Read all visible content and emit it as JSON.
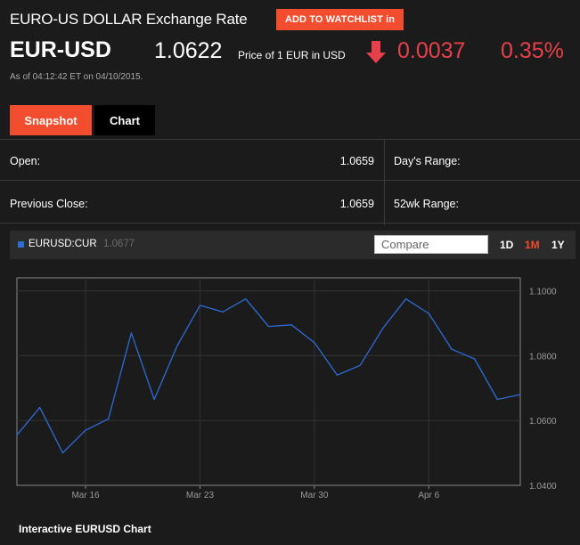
{
  "header": {
    "title": "EURO-US DOLLAR Exchange Rate",
    "watchlist_label": "ADD TO WATCHLIST in"
  },
  "quote": {
    "ticker": "EUR-USD",
    "price": "1.0622",
    "price_desc": "Price of 1 EUR in USD",
    "direction_icon": "down-arrow-icon",
    "change": "0.0037",
    "change_pct": "0.35%",
    "as_of": "As of 04:12:42 ET on 04/10/2015."
  },
  "tabs": [
    {
      "label": "Snapshot",
      "active": true
    },
    {
      "label": "Chart",
      "active": false
    }
  ],
  "stats": {
    "open_label": "Open:",
    "open_value": "1.0659",
    "days_range_label": "Day's Range:",
    "prev_close_label": "Previous Close:",
    "prev_close_value": "1.0659",
    "wk52_range_label": "52wk Range:"
  },
  "chart_toolbar": {
    "series_name": "EURUSD:CUR",
    "series_value": "1.0677",
    "compare_placeholder": "Compare",
    "ranges": [
      "1D",
      "1M",
      "1Y"
    ],
    "active_range": "1M"
  },
  "colors": {
    "accent": "#f24d2e",
    "negative": "#e8404a",
    "series": "#2d6bd6"
  },
  "chart_data": {
    "type": "line",
    "title": "",
    "xlabel": "",
    "ylabel": "",
    "x_tick_labels": [
      "Mar 16",
      "Mar 23",
      "Mar 30",
      "Apr 6"
    ],
    "y_tick_labels": [
      "1.0400",
      "1.0600",
      "1.0800",
      "1.1000"
    ],
    "ylim": [
      1.04,
      1.104
    ],
    "x": [
      "Mar 11",
      "Mar 12",
      "Mar 13",
      "Mar 16",
      "Mar 17",
      "Mar 18",
      "Mar 19",
      "Mar 20",
      "Mar 23",
      "Mar 24",
      "Mar 25",
      "Mar 26",
      "Mar 27",
      "Mar 30",
      "Mar 31",
      "Apr 1",
      "Apr 2",
      "Apr 3",
      "Apr 6",
      "Apr 7",
      "Apr 8",
      "Apr 9",
      "Apr 10"
    ],
    "series": [
      {
        "values": [
          1.0555,
          1.064,
          1.05,
          1.057,
          1.0605,
          1.087,
          1.0665,
          1.083,
          1.0955,
          1.0935,
          1.0975,
          1.089,
          1.0895,
          1.084,
          1.074,
          1.077,
          1.0885,
          1.0975,
          1.093,
          1.082,
          1.079,
          1.0665,
          1.068
        ]
      }
    ],
    "grid": true,
    "legend": "none"
  },
  "chart_caption": "Interactive EURUSD Chart"
}
